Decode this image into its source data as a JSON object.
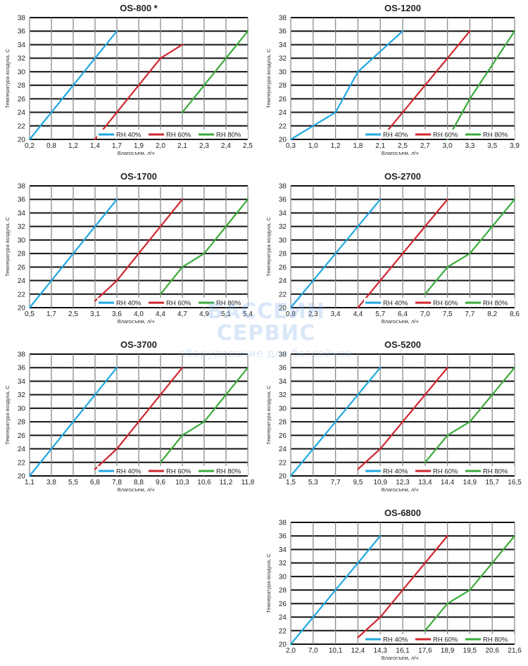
{
  "watermark": {
    "line1": "БАССЕЙН",
    "line2": "СЕРВИС",
    "tagline": "оборудование для бассейнов"
  },
  "series_colors": {
    "RH 40%": "#20a8e0",
    "RH 60%": "#d0262d",
    "RH 80%": "#3bab3b"
  },
  "chart_data": [
    {
      "type": "line",
      "title": "OS-800 *",
      "xlabel": "Влагосъем, л/ч",
      "ylabel": "Температура воздуха, С",
      "x_ticks": [
        "0,2",
        "0,8",
        "1,2",
        "1,4",
        "1,7",
        "1,9",
        "2,0",
        "2,1",
        "2,3",
        "2,4",
        "2,5"
      ],
      "y_ticks": [
        20,
        22,
        24,
        26,
        28,
        30,
        32,
        34,
        36,
        38
      ],
      "ylim": [
        20,
        38
      ],
      "legend": [
        "RH 40%",
        "RH 60%",
        "RH 80%"
      ],
      "series": [
        {
          "name": "RH 40%",
          "points": [
            [
              0.2,
              20
            ],
            [
              0.8,
              24
            ],
            [
              1.7,
              36
            ]
          ]
        },
        {
          "name": "RH 60%",
          "points": [
            [
              1.4,
              20
            ],
            [
              1.7,
              24
            ],
            [
              2.0,
              32
            ],
            [
              2.1,
              34
            ]
          ]
        },
        {
          "name": "RH 80%",
          "points": [
            [
              2.1,
              24
            ],
            [
              2.3,
              28
            ],
            [
              2.5,
              36
            ]
          ]
        }
      ]
    },
    {
      "type": "line",
      "title": "OS-1200",
      "xlabel": "Влагосъем, л/ч",
      "ylabel": "Температура воздуха, С",
      "x_ticks": [
        "0,3",
        "1,0",
        "1,2",
        "1,8",
        "2,1",
        "2,5",
        "2,7",
        "3,0",
        "3,3",
        "3,5",
        "3,9"
      ],
      "y_ticks": [
        20,
        22,
        24,
        26,
        28,
        30,
        32,
        34,
        36,
        38
      ],
      "ylim": [
        20,
        38
      ],
      "legend": [
        "RH 40%",
        "RH 60%",
        "RH 80%"
      ],
      "series": [
        {
          "name": "RH 40%",
          "points": [
            [
              0.3,
              20
            ],
            [
              1.0,
              22
            ],
            [
              1.2,
              24
            ],
            [
              1.8,
              30
            ],
            [
              2.5,
              36
            ]
          ]
        },
        {
          "name": "RH 60%",
          "points": [
            [
              2.1,
              20
            ],
            [
              2.5,
              24
            ],
            [
              2.7,
              28
            ],
            [
              3.0,
              32
            ],
            [
              3.3,
              36
            ]
          ]
        },
        {
          "name": "RH 80%",
          "points": [
            [
              3.0,
              20
            ],
            [
              3.3,
              26
            ],
            [
              3.9,
              36
            ]
          ]
        }
      ]
    },
    {
      "type": "line",
      "title": "OS-1700",
      "xlabel": "Влагосъем, л/ч",
      "ylabel": "Температура воздуха, С",
      "x_ticks": [
        "0,5",
        "1,7",
        "2,5",
        "3,1",
        "3,6",
        "4,0",
        "4,4",
        "4,7",
        "4,9",
        "5,1",
        "5,4"
      ],
      "y_ticks": [
        20,
        22,
        24,
        26,
        28,
        30,
        32,
        34,
        36,
        38
      ],
      "ylim": [
        20,
        38
      ],
      "legend": [
        "RH 40%",
        "RH 60%",
        "RH 80%"
      ],
      "series": [
        {
          "name": "RH 40%",
          "points": [
            [
              0.5,
              20
            ],
            [
              1.7,
              24
            ],
            [
              3.6,
              36
            ]
          ]
        },
        {
          "name": "RH 60%",
          "points": [
            [
              3.1,
              21
            ],
            [
              3.6,
              24
            ],
            [
              4.0,
              28
            ],
            [
              4.7,
              36
            ]
          ]
        },
        {
          "name": "RH 80%",
          "points": [
            [
              4.4,
              22
            ],
            [
              4.7,
              26
            ],
            [
              4.9,
              28
            ],
            [
              5.4,
              36
            ]
          ]
        }
      ]
    },
    {
      "type": "line",
      "title": "OS-2700",
      "xlabel": "Влагосъем, л/ч",
      "ylabel": "Температура воздуха, С",
      "x_ticks": [
        "0,8",
        "2,3",
        "3,4",
        "4,4",
        "5,7",
        "6,4",
        "7,0",
        "7,5",
        "7,7",
        "8,2",
        "8,6"
      ],
      "y_ticks": [
        20,
        22,
        24,
        26,
        28,
        30,
        32,
        34,
        36,
        38
      ],
      "ylim": [
        20,
        38
      ],
      "legend": [
        "RH 40%",
        "RH 60%",
        "RH 80%"
      ],
      "series": [
        {
          "name": "RH 40%",
          "points": [
            [
              0.8,
              20
            ],
            [
              2.3,
              24
            ],
            [
              3.4,
              28
            ],
            [
              5.7,
              36
            ]
          ]
        },
        {
          "name": "RH 60%",
          "points": [
            [
              4.4,
              20
            ],
            [
              5.7,
              24
            ],
            [
              6.4,
              28
            ],
            [
              7.5,
              36
            ]
          ]
        },
        {
          "name": "RH 80%",
          "points": [
            [
              7.0,
              22
            ],
            [
              7.5,
              26
            ],
            [
              7.7,
              28
            ],
            [
              8.6,
              36
            ]
          ]
        }
      ]
    },
    {
      "type": "line",
      "title": "OS-3700",
      "xlabel": "Влагосъем, л/ч",
      "ylabel": "Температура воздуха, С",
      "x_ticks": [
        "1,1",
        "3,8",
        "5,5",
        "6,8",
        "7,8",
        "8,8",
        "9,6",
        "10,3",
        "10,6",
        "11,2",
        "11,8"
      ],
      "y_ticks": [
        20,
        22,
        24,
        26,
        28,
        30,
        32,
        34,
        36,
        38
      ],
      "ylim": [
        20,
        38
      ],
      "legend": [
        "RH 40%",
        "RH 60%",
        "RH 80%"
      ],
      "series": [
        {
          "name": "RH 40%",
          "points": [
            [
              1.1,
              20
            ],
            [
              3.8,
              24
            ],
            [
              5.5,
              28
            ],
            [
              7.8,
              36
            ]
          ]
        },
        {
          "name": "RH 60%",
          "points": [
            [
              6.8,
              21
            ],
            [
              7.8,
              24
            ],
            [
              8.8,
              28
            ],
            [
              10.3,
              36
            ]
          ]
        },
        {
          "name": "RH 80%",
          "points": [
            [
              9.6,
              22
            ],
            [
              10.3,
              26
            ],
            [
              10.6,
              28
            ],
            [
              11.8,
              36
            ]
          ]
        }
      ]
    },
    {
      "type": "line",
      "title": "OS-5200",
      "xlabel": "Влагосъем, л/ч",
      "ylabel": "Температура воздуха, С",
      "x_ticks": [
        "1,5",
        "5,3",
        "7,7",
        "9,5",
        "10,9",
        "12,3",
        "13,4",
        "14,4",
        "14,9",
        "15,7",
        "16,5"
      ],
      "y_ticks": [
        20,
        22,
        24,
        26,
        28,
        30,
        32,
        34,
        36,
        38
      ],
      "ylim": [
        20,
        38
      ],
      "legend": [
        "RH 40%",
        "RH 60%",
        "RH 80%"
      ],
      "series": [
        {
          "name": "RH 40%",
          "points": [
            [
              1.5,
              20
            ],
            [
              5.3,
              24
            ],
            [
              7.7,
              28
            ],
            [
              10.9,
              36
            ]
          ]
        },
        {
          "name": "RH 60%",
          "points": [
            [
              9.5,
              21
            ],
            [
              10.9,
              24
            ],
            [
              12.3,
              28
            ],
            [
              14.4,
              36
            ]
          ]
        },
        {
          "name": "RH 80%",
          "points": [
            [
              13.4,
              22
            ],
            [
              14.4,
              26
            ],
            [
              14.9,
              28
            ],
            [
              16.5,
              36
            ]
          ]
        }
      ]
    },
    {
      "type": "line",
      "title": "OS-6800",
      "xlabel": "Влагосъем, л/ч",
      "ylabel": "Температура воздуха, С",
      "x_ticks": [
        "2,0",
        "7,0",
        "10,1",
        "12,4",
        "14,3",
        "16,1",
        "17,6",
        "18,9",
        "19,5",
        "20,6",
        "21,6"
      ],
      "y_ticks": [
        20,
        22,
        24,
        26,
        28,
        30,
        32,
        34,
        36,
        38
      ],
      "ylim": [
        20,
        38
      ],
      "legend": [
        "RH 40%",
        "RH 60%",
        "RH 80%"
      ],
      "series": [
        {
          "name": "RH 40%",
          "points": [
            [
              2.0,
              20
            ],
            [
              7.0,
              24
            ],
            [
              10.1,
              28
            ],
            [
              14.3,
              36
            ]
          ]
        },
        {
          "name": "RH 60%",
          "points": [
            [
              12.4,
              21
            ],
            [
              14.3,
              24
            ],
            [
              16.1,
              28
            ],
            [
              18.9,
              36
            ]
          ]
        },
        {
          "name": "RH 80%",
          "points": [
            [
              17.6,
              22
            ],
            [
              18.9,
              26
            ],
            [
              19.5,
              28
            ],
            [
              21.6,
              36
            ]
          ]
        }
      ]
    }
  ]
}
